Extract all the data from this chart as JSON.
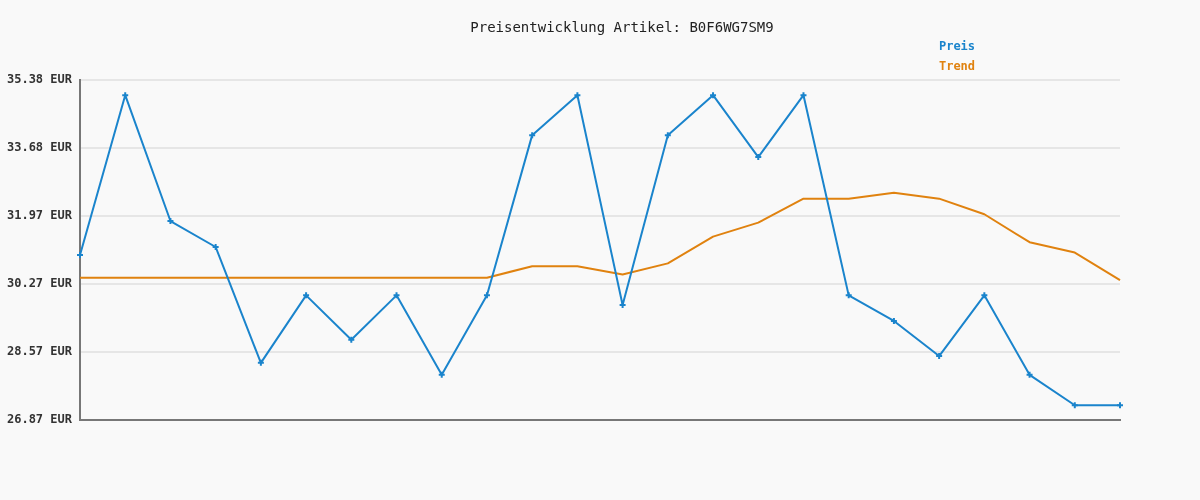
{
  "chart_data": {
    "type": "line",
    "title": "Preisentwicklung Artikel: B0F6WG7SM9",
    "categories": [
      null,
      null,
      null,
      null,
      null,
      null,
      null,
      null,
      null,
      null,
      null,
      null,
      null,
      null,
      null,
      null,
      null,
      null,
      null,
      null,
      null,
      null,
      null,
      null
    ],
    "series": [
      {
        "name": "Preis",
        "color": "#1a84cc",
        "marker": "cross",
        "values": [
          31.0,
          35.0,
          31.85,
          31.2,
          28.3,
          29.99,
          28.88,
          29.99,
          28.0,
          29.99,
          34.0,
          35.0,
          29.75,
          34.0,
          35.0,
          33.45,
          35.0,
          29.99,
          29.35,
          28.47,
          29.99,
          28.0,
          27.24,
          27.24
        ]
      },
      {
        "name": "Trend",
        "color": "#e0820f",
        "marker": "none",
        "values": [
          30.43,
          30.43,
          30.43,
          30.43,
          30.43,
          30.43,
          30.43,
          30.43,
          30.43,
          30.43,
          30.72,
          30.72,
          30.51,
          30.79,
          31.46,
          31.81,
          32.41,
          32.41,
          32.56,
          32.41,
          32.02,
          31.32,
          31.06,
          30.37
        ]
      }
    ],
    "ylim": [
      26.87,
      35.38
    ],
    "yticks": [
      {
        "value": 26.87,
        "label": "26.87 EUR"
      },
      {
        "value": 28.57,
        "label": "28.57 EUR"
      },
      {
        "value": 30.27,
        "label": "30.27 EUR"
      },
      {
        "value": 31.97,
        "label": "31.97 EUR"
      },
      {
        "value": 33.68,
        "label": "33.68 EUR"
      },
      {
        "value": 35.38,
        "label": "35.38 EUR"
      }
    ],
    "grid": "y",
    "legend": "top right"
  }
}
